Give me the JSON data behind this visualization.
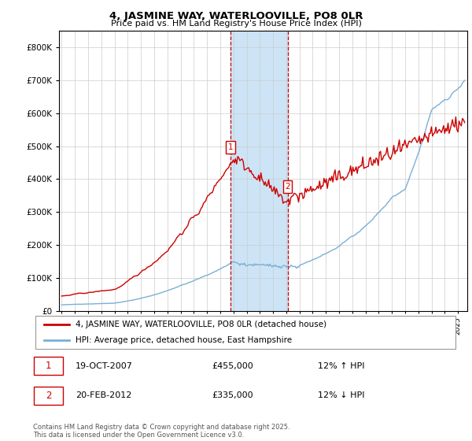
{
  "title_line1": "4, JASMINE WAY, WATERLOOVILLE, PO8 0LR",
  "title_line2": "Price paid vs. HM Land Registry's House Price Index (HPI)",
  "legend_label1": "4, JASMINE WAY, WATERLOOVILLE, PO8 0LR (detached house)",
  "legend_label2": "HPI: Average price, detached house, East Hampshire",
  "annotation1_label": "1",
  "annotation1_date": "19-OCT-2007",
  "annotation1_price": "£455,000",
  "annotation1_hpi": "12% ↑ HPI",
  "annotation2_label": "2",
  "annotation2_date": "20-FEB-2012",
  "annotation2_price": "£335,000",
  "annotation2_hpi": "12% ↓ HPI",
  "copyright": "Contains HM Land Registry data © Crown copyright and database right 2025.\nThis data is licensed under the Open Government Licence v3.0.",
  "line1_color": "#cc0000",
  "line2_color": "#7bafd4",
  "shade_color": "#cce4f5",
  "vline_color": "#cc0000",
  "annotation_box_color": "#cc0000",
  "ylim_min": 0,
  "ylim_max": 850000,
  "year_start": 1995,
  "year_end": 2025,
  "marker1_year": 2007.8,
  "marker1_value": 455000,
  "marker2_year": 2012.1,
  "marker2_value": 335000,
  "yticks": [
    0,
    100000,
    200000,
    300000,
    400000,
    500000,
    600000,
    700000,
    800000
  ]
}
